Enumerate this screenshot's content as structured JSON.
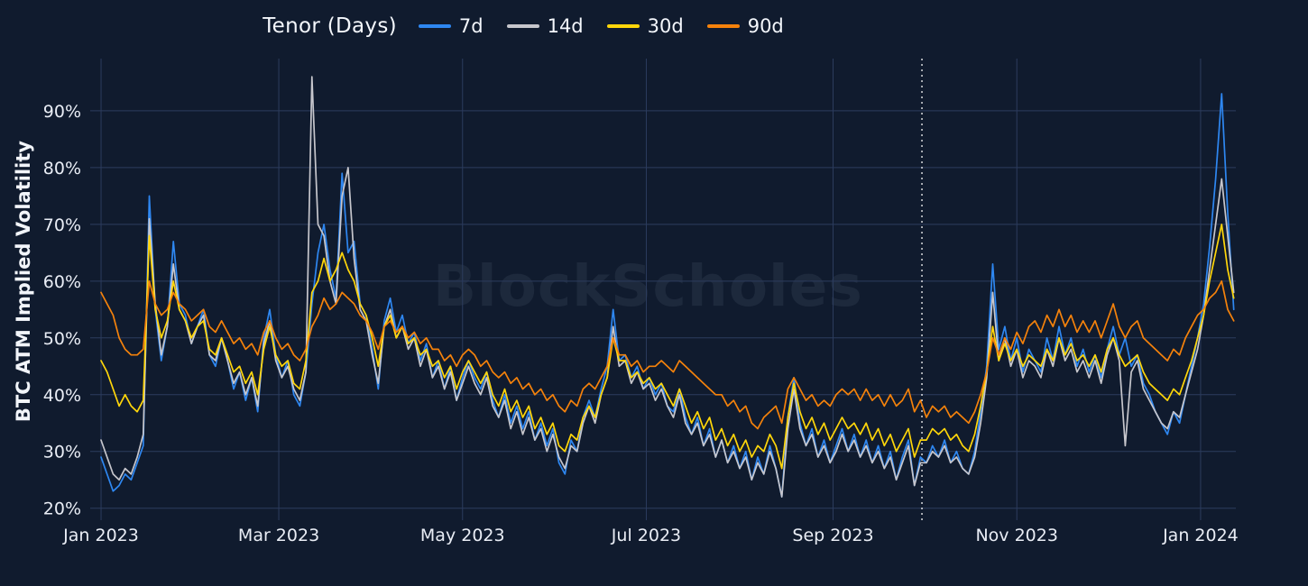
{
  "legend": {
    "title": "Tenor (Days)"
  },
  "watermark_text": "BlockScholes",
  "colors": {
    "background": "#101b2e",
    "gridline": "#2c3c5e",
    "tick_text": "#e9edf5",
    "dotted_marker_line": "#ffffff",
    "series_7d": "#2e87f1",
    "series_14d": "#c6c6cc",
    "series_30d": "#ffd60a",
    "series_90d": "#f5820b"
  },
  "chart_data": {
    "type": "line",
    "title": "Tenor (Days)",
    "ylabel": "BTC ATM Implied Volatility",
    "legend_position": "top-center",
    "grid": true,
    "x_unit": "days since 2023-01-01",
    "x_start_day": 0,
    "x_step_days": 2,
    "xlim_days": [
      -3.6,
      376.7
    ],
    "ylim": [
      19,
      99.2
    ],
    "y_ticks": [
      20,
      30,
      40,
      50,
      60,
      70,
      80,
      90
    ],
    "y_tick_suffix": "%",
    "x_tick_days": [
      0,
      59,
      120,
      181,
      243,
      304,
      365
    ],
    "x_tick_labels": [
      "Jan 2023",
      "Mar 2023",
      "May 2023",
      "Jul 2023",
      "Sep 2023",
      "Nov 2023",
      "Jan 2024"
    ],
    "dotted_vline_day": 272.5,
    "series": [
      {
        "name": "7d",
        "color": "#2e87f1",
        "values": [
          29,
          26,
          23,
          24,
          26,
          25,
          28,
          31,
          75,
          55,
          46,
          52,
          67,
          56,
          54,
          49,
          52,
          55,
          47,
          45,
          50,
          46,
          41,
          44,
          39,
          43,
          37,
          50,
          55,
          47,
          43,
          46,
          40,
          38,
          44,
          56,
          65,
          70,
          62,
          57,
          79,
          65,
          67,
          56,
          54,
          48,
          41,
          53,
          57,
          51,
          54,
          49,
          51,
          46,
          49,
          43,
          46,
          41,
          45,
          39,
          43,
          46,
          43,
          41,
          44,
          39,
          36,
          40,
          35,
          38,
          34,
          37,
          32,
          35,
          31,
          34,
          28,
          26,
          32,
          30,
          36,
          39,
          36,
          41,
          45,
          55,
          46,
          47,
          43,
          45,
          41,
          43,
          40,
          42,
          38,
          37,
          41,
          36,
          33,
          36,
          31,
          34,
          29,
          32,
          28,
          31,
          27,
          30,
          25,
          29,
          26,
          31,
          27,
          22,
          36,
          43,
          35,
          31,
          34,
          29,
          32,
          28,
          31,
          34,
          30,
          33,
          29,
          32,
          28,
          31,
          27,
          30,
          25,
          29,
          32,
          24,
          29,
          28,
          31,
          29,
          32,
          28,
          30,
          27,
          26,
          30,
          37,
          45,
          63,
          48,
          52,
          46,
          50,
          44,
          48,
          46,
          44,
          50,
          46,
          52,
          47,
          50,
          45,
          48,
          44,
          47,
          43,
          48,
          52,
          47,
          50,
          45,
          47,
          42,
          40,
          37,
          35,
          33,
          37,
          35,
          40,
          45,
          50,
          56,
          66,
          78,
          93,
          72,
          55
        ]
      },
      {
        "name": "14d",
        "color": "#c6c6cc",
        "values": [
          32,
          29,
          26,
          25,
          27,
          26,
          29,
          33,
          71,
          56,
          47,
          52,
          63,
          55,
          53,
          49,
          52,
          54,
          47,
          46,
          50,
          46,
          42,
          44,
          40,
          43,
          38,
          49,
          53,
          46,
          43,
          45,
          41,
          39,
          44,
          96,
          70,
          68,
          60,
          56,
          75,
          80,
          64,
          55,
          53,
          47,
          42,
          52,
          55,
          50,
          52,
          48,
          50,
          45,
          48,
          43,
          45,
          41,
          44,
          39,
          42,
          45,
          42,
          40,
          43,
          38,
          36,
          39,
          34,
          37,
          33,
          36,
          32,
          34,
          30,
          33,
          29,
          27,
          31,
          30,
          35,
          38,
          35,
          40,
          43,
          52,
          45,
          46,
          42,
          44,
          41,
          42,
          39,
          41,
          38,
          36,
          40,
          35,
          33,
          35,
          31,
          33,
          29,
          32,
          28,
          30,
          27,
          29,
          25,
          28,
          26,
          30,
          27,
          22,
          34,
          41,
          34,
          31,
          33,
          29,
          31,
          28,
          30,
          33,
          30,
          32,
          29,
          31,
          28,
          30,
          27,
          29,
          25,
          28,
          31,
          24,
          28,
          28,
          30,
          29,
          31,
          28,
          29,
          27,
          26,
          29,
          35,
          43,
          58,
          46,
          50,
          45,
          48,
          43,
          46,
          45,
          43,
          48,
          45,
          50,
          46,
          48,
          44,
          46,
          43,
          46,
          42,
          47,
          50,
          46,
          31,
          44,
          46,
          41,
          39,
          37,
          35,
          34,
          37,
          36,
          40,
          44,
          48,
          54,
          62,
          70,
          78,
          68,
          58
        ]
      },
      {
        "name": "30d",
        "color": "#ffd60a",
        "values": [
          46,
          44,
          41,
          38,
          40,
          38,
          37,
          39,
          68,
          55,
          50,
          53,
          60,
          55,
          53,
          50,
          52,
          53,
          48,
          47,
          50,
          47,
          44,
          45,
          42,
          44,
          40,
          48,
          52,
          47,
          45,
          46,
          42,
          41,
          46,
          58,
          60,
          64,
          60,
          62,
          65,
          62,
          60,
          56,
          54,
          50,
          45,
          52,
          54,
          50,
          52,
          49,
          50,
          47,
          48,
          45,
          46,
          43,
          45,
          41,
          44,
          46,
          44,
          42,
          44,
          40,
          38,
          41,
          37,
          39,
          36,
          38,
          34,
          36,
          33,
          35,
          31,
          30,
          33,
          32,
          36,
          38,
          36,
          40,
          43,
          50,
          46,
          46,
          43,
          44,
          42,
          43,
          41,
          42,
          40,
          38,
          41,
          38,
          35,
          37,
          34,
          36,
          32,
          34,
          31,
          33,
          30,
          32,
          29,
          31,
          30,
          33,
          31,
          27,
          36,
          42,
          37,
          34,
          36,
          33,
          35,
          32,
          34,
          36,
          34,
          35,
          33,
          35,
          32,
          34,
          31,
          33,
          30,
          32,
          34,
          29,
          32,
          32,
          34,
          33,
          34,
          32,
          33,
          31,
          30,
          33,
          38,
          44,
          52,
          46,
          49,
          46,
          48,
          45,
          47,
          46,
          45,
          48,
          46,
          50,
          47,
          49,
          46,
          47,
          45,
          47,
          44,
          48,
          50,
          47,
          45,
          46,
          47,
          44,
          42,
          41,
          40,
          39,
          41,
          40,
          43,
          46,
          50,
          54,
          60,
          65,
          70,
          62,
          57
        ]
      },
      {
        "name": "90d",
        "color": "#f5820b",
        "values": [
          58,
          56,
          54,
          50,
          48,
          47,
          47,
          48,
          60,
          56,
          54,
          55,
          58,
          56,
          55,
          53,
          54,
          55,
          52,
          51,
          53,
          51,
          49,
          50,
          48,
          49,
          47,
          51,
          53,
          50,
          48,
          49,
          47,
          46,
          48,
          52,
          54,
          57,
          55,
          56,
          58,
          57,
          56,
          54,
          53,
          51,
          48,
          52,
          53,
          51,
          52,
          50,
          51,
          49,
          50,
          48,
          48,
          46,
          47,
          45,
          47,
          48,
          47,
          45,
          46,
          44,
          43,
          44,
          42,
          43,
          41,
          42,
          40,
          41,
          39,
          40,
          38,
          37,
          39,
          38,
          41,
          42,
          41,
          43,
          45,
          50,
          47,
          47,
          45,
          46,
          44,
          45,
          45,
          46,
          45,
          44,
          46,
          45,
          44,
          43,
          42,
          41,
          40,
          40,
          38,
          39,
          37,
          38,
          35,
          34,
          36,
          37,
          38,
          35,
          41,
          43,
          41,
          39,
          40,
          38,
          39,
          38,
          40,
          41,
          40,
          41,
          39,
          41,
          39,
          40,
          38,
          40,
          38,
          39,
          41,
          37,
          39,
          36,
          38,
          37,
          38,
          36,
          37,
          36,
          35,
          37,
          40,
          44,
          50,
          47,
          50,
          48,
          51,
          49,
          52,
          53,
          51,
          54,
          52,
          55,
          52,
          54,
          51,
          53,
          51,
          53,
          50,
          53,
          56,
          52,
          50,
          52,
          53,
          50,
          49,
          48,
          47,
          46,
          48,
          47,
          50,
          52,
          54,
          55,
          57,
          58,
          60,
          55,
          53
        ]
      }
    ]
  }
}
